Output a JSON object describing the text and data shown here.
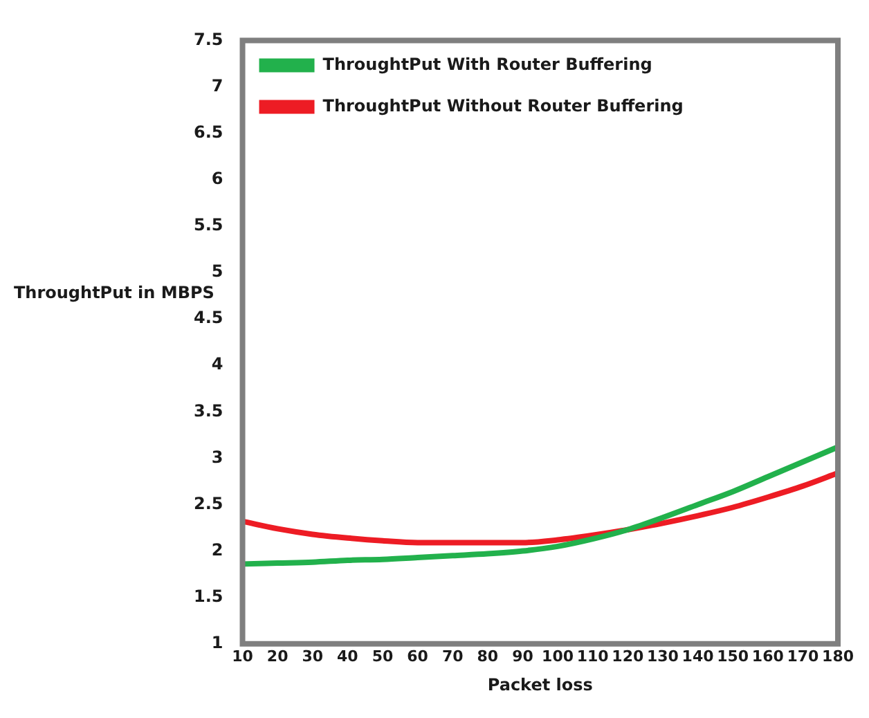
{
  "chart_data": {
    "type": "line",
    "xlabel": "Packet loss",
    "ylabel": "ThroughtPut in MBPS",
    "x": [
      10,
      20,
      30,
      40,
      50,
      60,
      70,
      80,
      90,
      100,
      110,
      120,
      130,
      140,
      150,
      160,
      170,
      180
    ],
    "series": [
      {
        "name": "ThroughtPut With Router Buffering",
        "color": "#22b14c",
        "values": [
          1.86,
          1.87,
          1.88,
          1.9,
          1.91,
          1.93,
          1.95,
          1.97,
          2.0,
          2.05,
          2.13,
          2.23,
          2.36,
          2.5,
          2.64,
          2.8,
          2.96,
          3.12
        ]
      },
      {
        "name": "ThroughtPut Without Router Buffering",
        "color": "#ed1c24",
        "values": [
          2.32,
          2.24,
          2.18,
          2.14,
          2.11,
          2.09,
          2.09,
          2.09,
          2.09,
          2.12,
          2.17,
          2.23,
          2.3,
          2.38,
          2.47,
          2.58,
          2.7,
          2.84
        ]
      }
    ],
    "xlim": [
      10,
      180
    ],
    "xticks": [
      10,
      20,
      30,
      40,
      50,
      60,
      70,
      80,
      90,
      100,
      110,
      120,
      130,
      140,
      150,
      160,
      170,
      180
    ],
    "ylim": [
      1,
      7.5
    ],
    "yticks": [
      1,
      1.5,
      2,
      2.5,
      3,
      3.5,
      4,
      4.5,
      5,
      5.5,
      6,
      6.5,
      7,
      7.5
    ],
    "grid": false,
    "legend": "top left",
    "marker": "none",
    "line_style": "solid"
  }
}
